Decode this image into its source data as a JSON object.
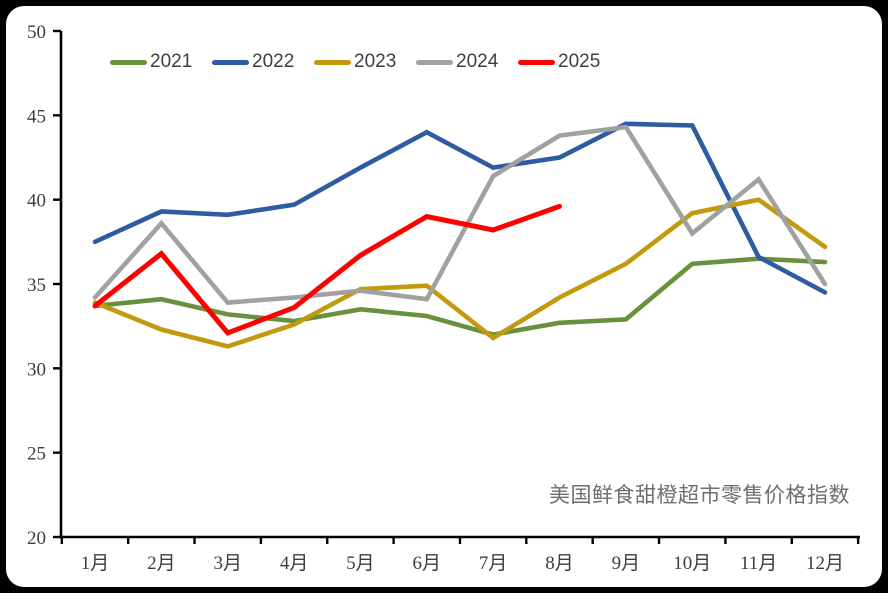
{
  "chart_data": {
    "type": "line",
    "title": "美国鲜食甜橙超市零售价格指数",
    "title_position": "bottom-right",
    "categories": [
      "1月",
      "2月",
      "3月",
      "4月",
      "5月",
      "6月",
      "7月",
      "8月",
      "9月",
      "10月",
      "11月",
      "12月"
    ],
    "ylim": [
      20,
      50
    ],
    "yticks": [
      20,
      25,
      30,
      35,
      40,
      45,
      50
    ],
    "grid": false,
    "legend_position": "top",
    "axis_color": "#000000",
    "tick_label_color": "#3d3d3d",
    "title_color": "#6e6e6e",
    "series": [
      {
        "name": "2021",
        "color": "#69903C",
        "values": [
          33.7,
          34.1,
          33.2,
          32.8,
          33.5,
          33.1,
          32.0,
          32.7,
          32.9,
          36.2,
          36.5,
          36.3
        ]
      },
      {
        "name": "2022",
        "color": "#2F5BA0",
        "values": [
          37.5,
          39.3,
          39.1,
          39.7,
          41.9,
          44.0,
          41.9,
          42.5,
          44.5,
          44.4,
          36.6,
          34.5
        ]
      },
      {
        "name": "2023",
        "color": "#C29A0E",
        "values": [
          33.9,
          32.3,
          31.3,
          32.6,
          34.7,
          34.9,
          31.8,
          34.2,
          36.2,
          39.2,
          40.0,
          37.2
        ]
      },
      {
        "name": "2024",
        "color": "#A1A1A1",
        "values": [
          34.2,
          38.6,
          33.9,
          34.2,
          34.6,
          34.1,
          41.4,
          43.8,
          44.3,
          38.0,
          41.2,
          35.0
        ]
      },
      {
        "name": "2025",
        "color": "#FF0000",
        "values": [
          33.7,
          36.8,
          32.1,
          33.6,
          36.7,
          39.0,
          38.2,
          39.6
        ]
      }
    ]
  }
}
